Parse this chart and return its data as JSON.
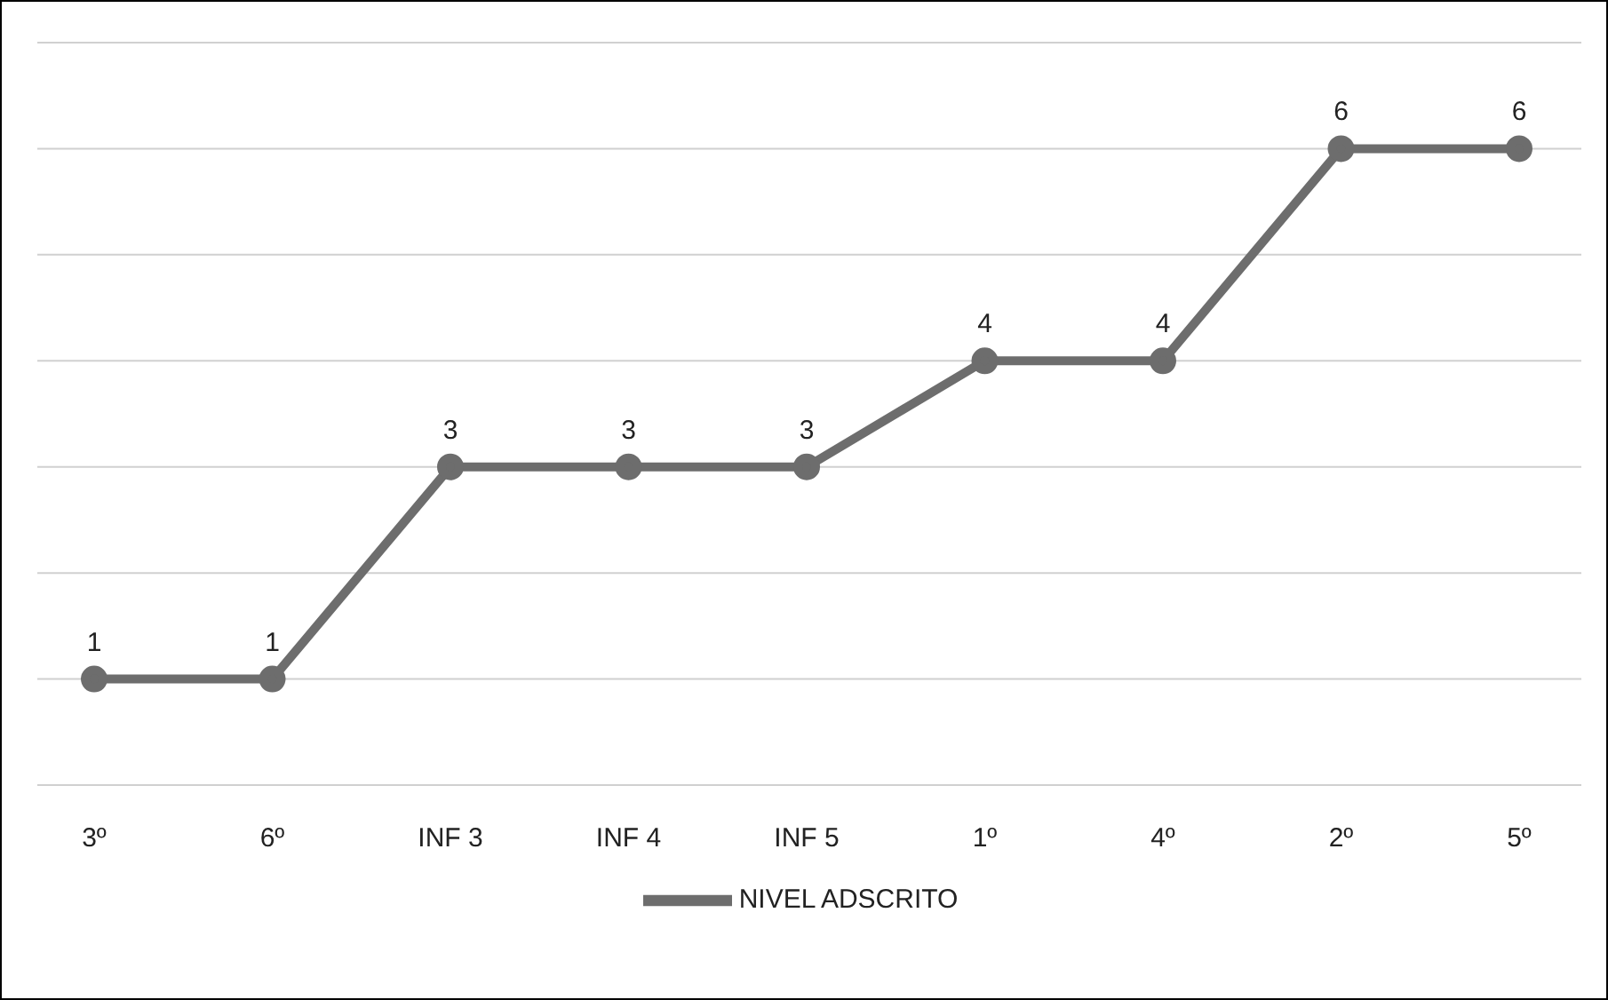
{
  "chart_data": {
    "type": "line",
    "categories": [
      "3º",
      "6º",
      "INF 3",
      "INF 4",
      "INF 5",
      "1º",
      "4º",
      "2º",
      "5º"
    ],
    "series": [
      {
        "name": "NIVEL ADSCRITO",
        "color": "#6d6d6d",
        "values": [
          1,
          1,
          3,
          3,
          3,
          4,
          4,
          6,
          6
        ]
      }
    ],
    "ylim": [
      0,
      7
    ],
    "yticks": [
      {
        "value": 0,
        "label": null
      },
      {
        "value": 1,
        "label": null
      },
      {
        "value": 2,
        "label": null
      },
      {
        "value": 3,
        "label": null
      },
      {
        "value": 4,
        "label": null
      },
      {
        "value": 5,
        "label": null
      },
      {
        "value": 6,
        "label": null
      },
      {
        "value": 7,
        "label": null
      }
    ],
    "tick_labels": "x",
    "grid": "y",
    "legend": "bottom",
    "marker": "circle",
    "line_style": "solid",
    "data_labels": true
  }
}
